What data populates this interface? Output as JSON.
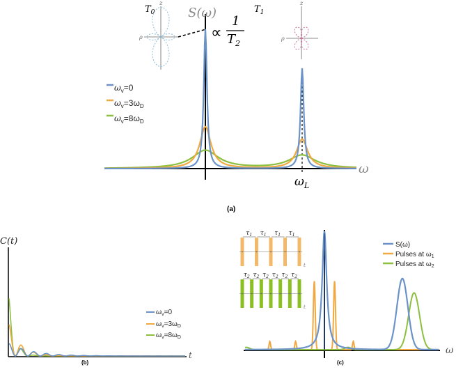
{
  "colors": {
    "series_blue": "#6b93c7",
    "series_orange": "#f0a942",
    "series_green": "#8cbf3f",
    "pulse_orange": "#f3b96a",
    "pulse_green": "#8cbf24",
    "dark_blue": "#2c4f8a"
  },
  "chart_data": [
    {
      "panel": "(a)",
      "type": "line",
      "title": "",
      "ylabel": "S(ω)",
      "xlabel": "ω",
      "x_ticks": [
        "ω_L"
      ],
      "annotation": "∝ 1/T₂",
      "insets": [
        {
          "label": "T₀",
          "axis_z": "z",
          "axis_rho": "ρ",
          "shape": "dipole lobes along z",
          "color": "series_blue"
        },
        {
          "label": "T₁",
          "axis_z": "z",
          "axis_rho": "ρ",
          "shape": "four-leaf lobes",
          "color": "pink"
        }
      ],
      "series": [
        {
          "name": "ω_v=0",
          "peaks": [
            {
              "x": 0,
              "height": 1.0,
              "width": 0.04
            },
            {
              "x": 1,
              "height": 0.72,
              "width": 0.04
            }
          ]
        },
        {
          "name": "ω_v=3ω_D",
          "peaks": [
            {
              "x": 0,
              "height": 0.3,
              "width": 0.14
            },
            {
              "x": 1,
              "height": 0.21,
              "width": 0.14
            }
          ]
        },
        {
          "name": "ω_v=8ω_D",
          "peaks": [
            {
              "x": 0,
              "height": 0.13,
              "width": 0.33
            },
            {
              "x": 1,
              "height": 0.095,
              "width": 0.33
            }
          ]
        }
      ]
    },
    {
      "panel": "(b)",
      "type": "line",
      "title": "",
      "ylabel": "C(t)",
      "xlabel": "t",
      "description_of_form": "damped oscillation",
      "series": [
        {
          "name": "ω_v=0",
          "amplitude": 0.12,
          "decay": 0.03,
          "frequency": 0.35
        },
        {
          "name": "ω_v=3ω_D",
          "amplitude": 0.3,
          "decay": 0.06,
          "frequency": 0.35
        },
        {
          "name": "ω_v=8ω_D",
          "amplitude": 0.55,
          "decay": 0.12,
          "frequency": 0.35
        }
      ]
    },
    {
      "panel": "(c)",
      "type": "line",
      "title": "",
      "xlabel": "ω",
      "series": [
        {
          "name": "S(ω)",
          "peaks": [
            {
              "x": 0,
              "height": 1.0
            },
            {
              "x": 1,
              "height": 0.6
            }
          ]
        },
        {
          "name": "Pulses at ω₁",
          "spikes": [
            {
              "x": -0.13,
              "height": 0.58
            },
            {
              "x": 0.13,
              "height": 0.58
            }
          ]
        },
        {
          "name": "Pulses at ω₂",
          "peaks": [
            {
              "x": 1.15,
              "height": 0.48
            }
          ]
        }
      ],
      "insets": [
        {
          "label": "τ₁",
          "count": 5,
          "color": "pulse_orange",
          "axis": "t"
        },
        {
          "label": "τ₂",
          "count": 7,
          "color": "pulse_green",
          "axis": "t"
        }
      ]
    }
  ],
  "labels": {
    "panel_a": "(a)",
    "panel_b": "(b)",
    "panel_c": "(c)",
    "a_ylabel": "S(ω)",
    "a_xlabel": "ω",
    "a_tick": "ω",
    "a_tick_sub": "L",
    "a_prop": "∝",
    "a_frac_num": "1",
    "a_frac_den": "T",
    "a_frac_den_sub": "2",
    "T0": "T",
    "T0_sub": "0",
    "T1": "T",
    "T1_sub": "1",
    "z": "z",
    "rho": "ρ",
    "legend_a": [
      "ω",
      "ω",
      "ω"
    ],
    "legend_a_text": [
      "=0",
      "=3ω",
      "=8ω"
    ],
    "b_ylabel": "C(t)",
    "b_xlabel": "t",
    "c_xlabel": "ω",
    "c_legend": [
      "S(ω)",
      "Pulses at ω",
      "Pulses at ω"
    ],
    "c_legend_sub": [
      "",
      "1",
      "2"
    ],
    "tau1": "τ",
    "tau1_sub": "1",
    "tau2": "τ",
    "tau2_sub": "2",
    "t": "t"
  }
}
